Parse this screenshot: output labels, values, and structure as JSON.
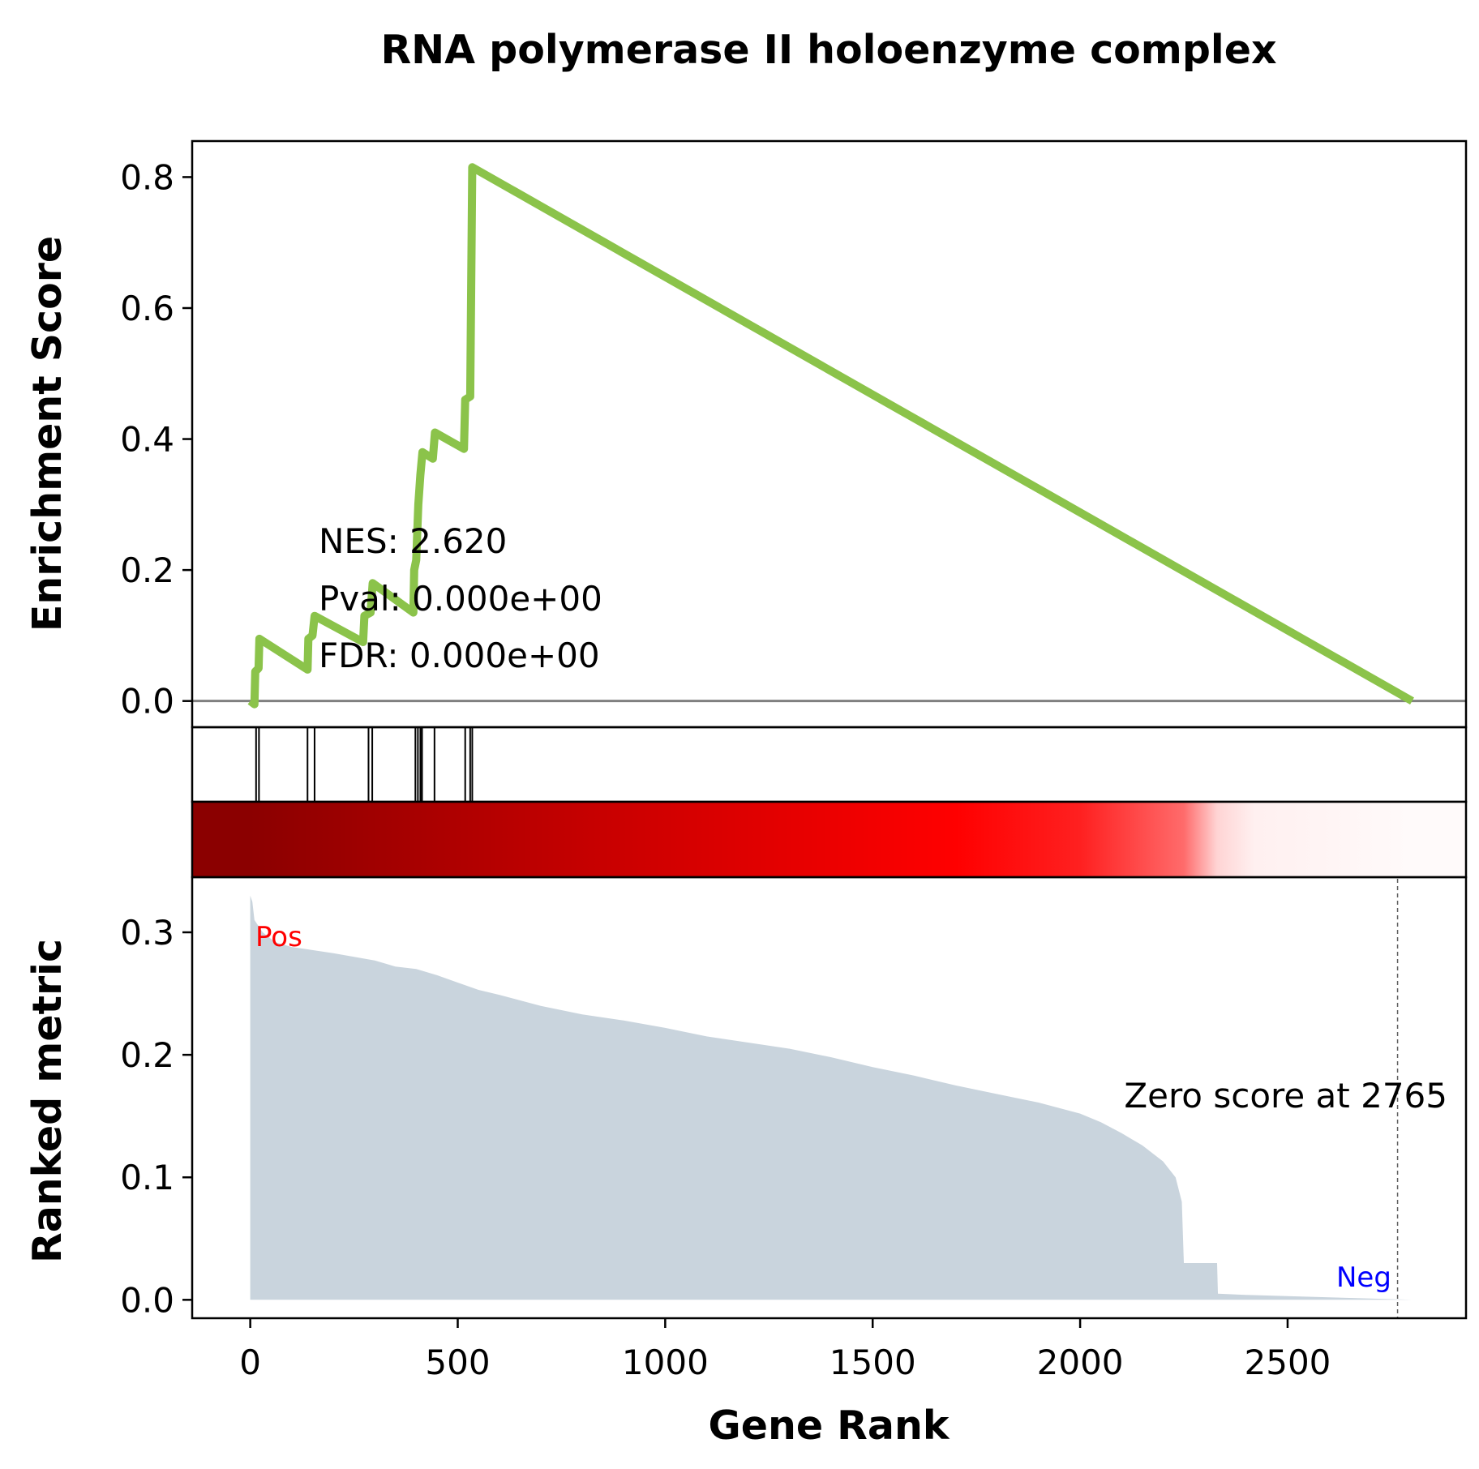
{
  "chart_data": {
    "type": "line",
    "title": "RNA polymerase II holoenzyme complex",
    "xlabel": "Gene Rank",
    "n_genes": 2800,
    "xlim": [
      -140,
      2930
    ],
    "xticks": [
      "0",
      "500",
      "1000",
      "1500",
      "2000",
      "2500"
    ],
    "xtick_values": [
      0,
      500,
      1000,
      1500,
      2000,
      2500
    ],
    "enrichment": {
      "ylabel": "Enrichment Score",
      "ylim": [
        -0.04,
        0.855
      ],
      "yticks": [
        "0.0",
        "0.2",
        "0.4",
        "0.6",
        "0.8"
      ],
      "ytick_values": [
        0,
        0.2,
        0.4,
        0.6,
        0.8
      ],
      "line_color": "#8bc34a",
      "points": [
        [
          0,
          0.0
        ],
        [
          10,
          -0.005
        ],
        [
          12,
          0.045
        ],
        [
          20,
          0.05
        ],
        [
          22,
          0.095
        ],
        [
          138,
          0.048
        ],
        [
          140,
          0.095
        ],
        [
          150,
          0.1
        ],
        [
          155,
          0.13
        ],
        [
          272,
          0.09
        ],
        [
          275,
          0.13
        ],
        [
          290,
          0.135
        ],
        [
          295,
          0.18
        ],
        [
          393,
          0.135
        ],
        [
          395,
          0.2
        ],
        [
          400,
          0.215
        ],
        [
          405,
          0.3
        ],
        [
          410,
          0.345
        ],
        [
          415,
          0.38
        ],
        [
          440,
          0.37
        ],
        [
          445,
          0.41
        ],
        [
          515,
          0.385
        ],
        [
          518,
          0.46
        ],
        [
          530,
          0.465
        ],
        [
          535,
          0.815
        ],
        [
          2800,
          0.0
        ]
      ],
      "annotations": [
        "NES: 2.620",
        "Pval: 0.000e+00",
        "FDR: 0.000e+00"
      ]
    },
    "hits": [
      14,
      21,
      138,
      155,
      285,
      294,
      398,
      404,
      410,
      414,
      444,
      518,
      530,
      535
    ],
    "heatmap": {
      "stops": [
        {
          "x": 0,
          "color": "#8b0000"
        },
        {
          "x": 850,
          "color": "#c80000"
        },
        {
          "x": 1700,
          "color": "#ff0000"
        },
        {
          "x": 2000,
          "color": "#ff2020"
        },
        {
          "x": 2250,
          "color": "#ff6b6b"
        },
        {
          "x": 2330,
          "color": "#ffd4d4"
        },
        {
          "x": 2420,
          "color": "#fff0f0"
        },
        {
          "x": 2800,
          "color": "#fffafa"
        }
      ]
    },
    "ranked_metric": {
      "ylabel": "Ranked metric",
      "ylim": [
        -0.015,
        0.345
      ],
      "yticks": [
        "0.0",
        "0.1",
        "0.2",
        "0.3"
      ],
      "ytick_values": [
        0,
        0.1,
        0.2,
        0.3
      ],
      "fill_color": "#c9d4dd",
      "points": [
        [
          0,
          0.33
        ],
        [
          5,
          0.325
        ],
        [
          10,
          0.31
        ],
        [
          30,
          0.3
        ],
        [
          60,
          0.292
        ],
        [
          100,
          0.288
        ],
        [
          200,
          0.283
        ],
        [
          300,
          0.277
        ],
        [
          350,
          0.272
        ],
        [
          400,
          0.27
        ],
        [
          450,
          0.265
        ],
        [
          500,
          0.259
        ],
        [
          550,
          0.253
        ],
        [
          600,
          0.249
        ],
        [
          700,
          0.24
        ],
        [
          800,
          0.233
        ],
        [
          900,
          0.228
        ],
        [
          1000,
          0.222
        ],
        [
          1100,
          0.215
        ],
        [
          1200,
          0.21
        ],
        [
          1300,
          0.205
        ],
        [
          1400,
          0.198
        ],
        [
          1500,
          0.19
        ],
        [
          1600,
          0.183
        ],
        [
          1700,
          0.175
        ],
        [
          1800,
          0.168
        ],
        [
          1900,
          0.161
        ],
        [
          2000,
          0.152
        ],
        [
          2050,
          0.145
        ],
        [
          2100,
          0.136
        ],
        [
          2150,
          0.126
        ],
        [
          2200,
          0.113
        ],
        [
          2230,
          0.1
        ],
        [
          2245,
          0.08
        ],
        [
          2250,
          0.03
        ],
        [
          2330,
          0.03
        ],
        [
          2332,
          0.005
        ],
        [
          2400,
          0.004
        ],
        [
          2500,
          0.003
        ],
        [
          2600,
          0.002
        ],
        [
          2700,
          0.001
        ],
        [
          2800,
          0.0
        ]
      ],
      "zero_score_position": 2765,
      "zero_score_label": "Zero score at 2765",
      "pos_label": "Pos",
      "neg_label": "Neg",
      "pos_color": "#ff0000",
      "neg_color": "#0000ff"
    }
  }
}
